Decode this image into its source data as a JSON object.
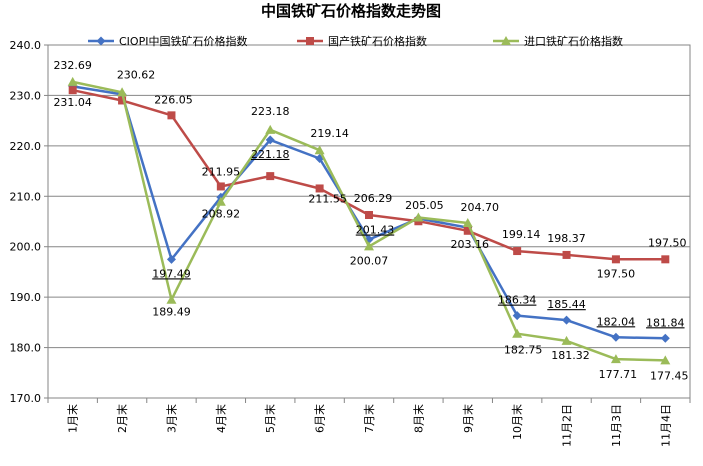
{
  "chart_data": {
    "type": "line",
    "title": "中国铁矿石价格指数走势图",
    "xlabel": "",
    "ylabel": "",
    "ylim": [
      170,
      240
    ],
    "ytick_step": 10,
    "grid": true,
    "legend": "top",
    "categories": [
      "1月末",
      "2月末",
      "3月末",
      "4月末",
      "5月末",
      "6月末",
      "7月末",
      "8月末",
      "9月末",
      "10月末",
      "11月2日",
      "11月3日",
      "11月4日"
    ],
    "series": [
      {
        "name": "CIOPI中国铁矿石价格指数",
        "color": "#4472C4",
        "marker": "diamond",
        "values": [
          231.8,
          230.2,
          197.49,
          209.8,
          221.18,
          217.5,
          201.43,
          205.6,
          203.8,
          186.34,
          185.44,
          182.04,
          181.84
        ],
        "labels": [
          null,
          null,
          "197.49",
          null,
          "221.18",
          null,
          "201.43",
          null,
          null,
          "186.34",
          "185.44",
          "182.04",
          "181.84"
        ]
      },
      {
        "name": "国产铁矿石价格指数",
        "color": "#BE4B48",
        "marker": "square",
        "values": [
          231.04,
          229.0,
          226.05,
          211.95,
          214.0,
          211.55,
          206.29,
          205.05,
          203.16,
          199.14,
          198.37,
          197.5,
          197.5
        ],
        "labels": [
          "231.04",
          null,
          "226.05",
          "211.95",
          null,
          "211.55",
          "206.29",
          "205.05",
          "203.16",
          "199.14",
          "198.37",
          "197.50",
          "197.50"
        ]
      },
      {
        "name": "进口铁矿石价格指数",
        "color": "#9BBB59",
        "marker": "triangle",
        "values": [
          232.69,
          230.62,
          189.49,
          208.92,
          223.18,
          219.14,
          200.07,
          205.8,
          204.7,
          182.75,
          181.32,
          177.71,
          177.45
        ],
        "labels": [
          "232.69",
          "230.62",
          "189.49",
          "208.92",
          "223.18",
          "219.14",
          "200.07",
          null,
          "204.70",
          "182.75",
          "181.32",
          "177.71",
          "177.45"
        ]
      }
    ]
  }
}
